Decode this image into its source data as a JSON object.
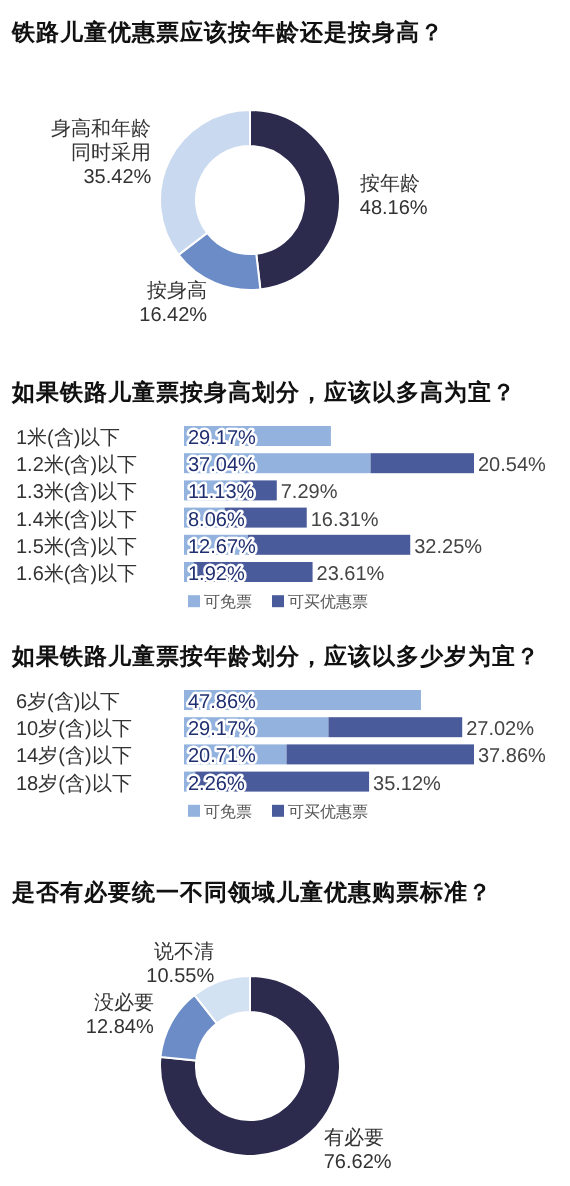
{
  "chart_data": [
    {
      "type": "donut",
      "title": "铁路儿童优惠票应该按年龄还是按身高？",
      "categories": [
        "按年龄",
        "按身高",
        "身高和年龄同时采用"
      ],
      "values": [
        48.16,
        16.42,
        35.42
      ],
      "colors": [
        "#2c2b4e",
        "#6b8cc6",
        "#c9d9ef"
      ],
      "value_labels": [
        "48.16%",
        "16.42%",
        "35.42%"
      ]
    },
    {
      "type": "bar",
      "orientation": "horizontal",
      "stacked": true,
      "title": "如果铁路儿童票按身高划分，应该以多高为宜？",
      "categories": [
        "1米(含)以下",
        "1.2米(含)以下",
        "1.3米(含)以下",
        "1.4米(含)以下",
        "1.5米(含)以下",
        "1.6米(含)以下"
      ],
      "series": [
        {
          "name": "可免票",
          "color": "#93b3de",
          "values": [
            29.17,
            37.04,
            11.13,
            8.06,
            12.67,
            1.92
          ],
          "value_labels": [
            "29.17%",
            "37.04%",
            "11.13%",
            "8.06%",
            "12.67%",
            "1.92%"
          ]
        },
        {
          "name": "可买优惠票",
          "color": "#4a5b9c",
          "values": [
            null,
            20.54,
            7.29,
            16.31,
            32.25,
            23.61
          ],
          "value_labels": [
            null,
            "20.54%",
            "7.29%",
            "16.31%",
            "32.25%",
            "23.61%"
          ]
        }
      ],
      "legend": "bottom"
    },
    {
      "type": "bar",
      "orientation": "horizontal",
      "stacked": true,
      "title": "如果铁路儿童票按年龄划分，应该以多少岁为宜？",
      "categories": [
        "6岁(含)以下",
        "10岁(含)以下",
        "14岁(含)以下",
        "18岁(含)以下"
      ],
      "series": [
        {
          "name": "可免票",
          "color": "#93b3de",
          "values": [
            47.86,
            29.17,
            20.71,
            2.26
          ],
          "value_labels": [
            "47.86%",
            "29.17%",
            "20.71%",
            "2.26%"
          ]
        },
        {
          "name": "可买优惠票",
          "color": "#4a5b9c",
          "values": [
            null,
            27.02,
            37.86,
            35.12
          ],
          "value_labels": [
            null,
            "27.02%",
            "37.86%",
            "35.12%"
          ]
        }
      ],
      "legend": "bottom"
    },
    {
      "type": "donut",
      "title": "是否有必要统一不同领域儿童优惠购票标准？",
      "categories": [
        "有必要",
        "没必要",
        "说不清"
      ],
      "values": [
        76.62,
        12.84,
        10.55
      ],
      "colors": [
        "#2c2b4e",
        "#6b8cc6",
        "#d3e2f3"
      ],
      "value_labels": [
        "76.62%",
        "12.84%",
        "10.55%"
      ]
    }
  ]
}
